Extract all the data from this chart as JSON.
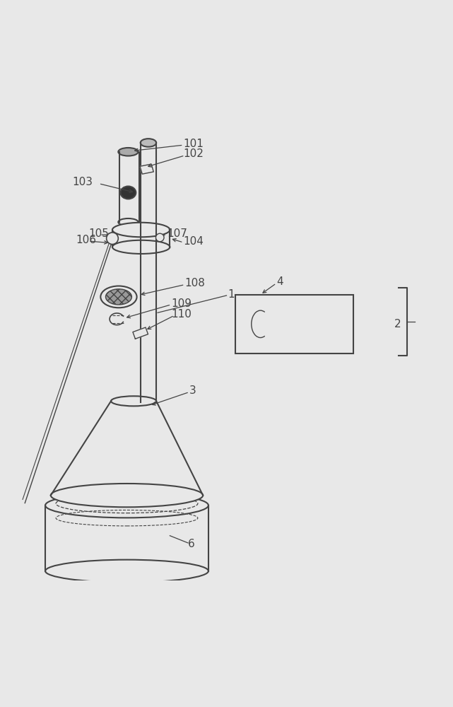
{
  "bg_color": "#e8e8e8",
  "line_color": "#444444",
  "line_width": 1.2,
  "font_size": 11
}
